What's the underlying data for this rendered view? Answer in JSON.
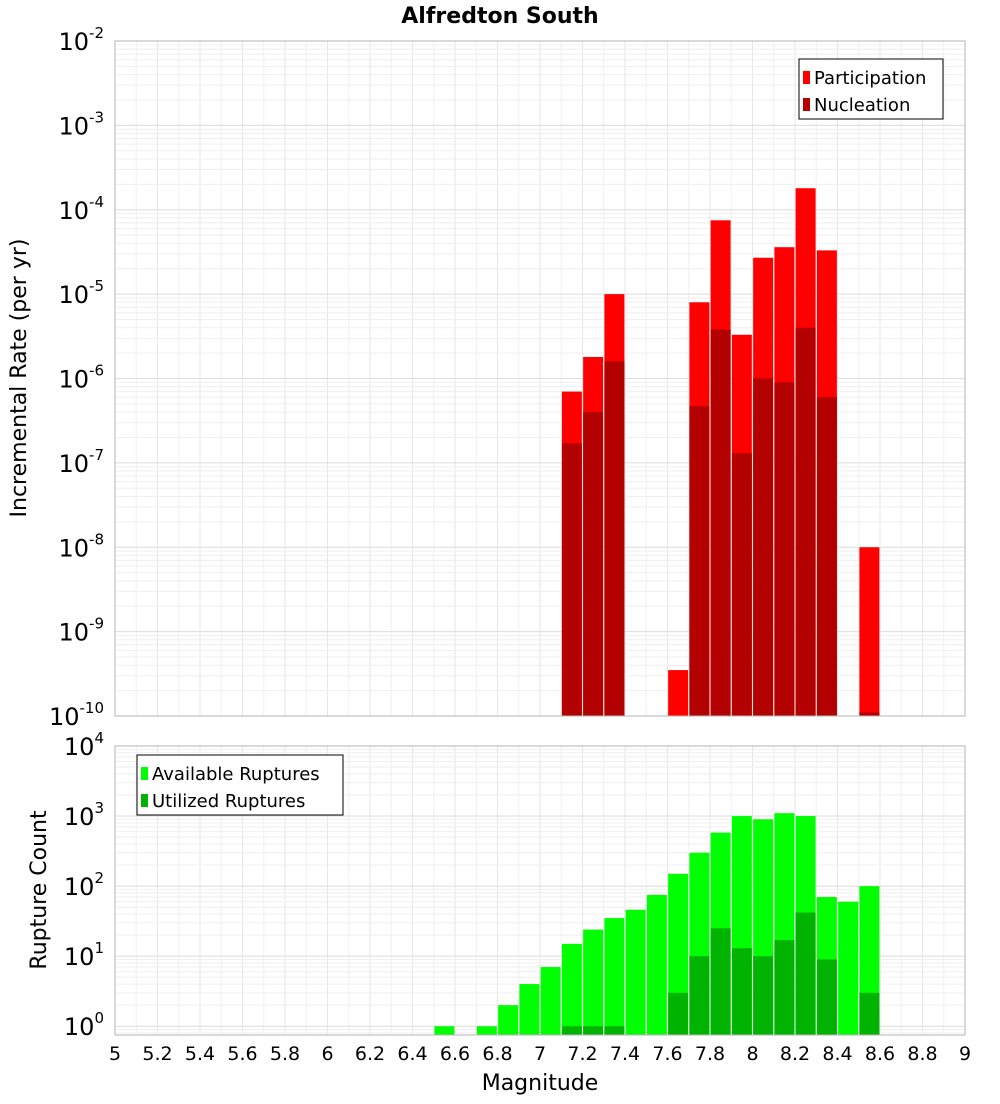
{
  "chart_data": [
    {
      "id": "rates",
      "type": "bar",
      "title": "Alfredton South",
      "xlabel": "Magnitude",
      "ylabel": "Incremental Rate (per yr)",
      "yscale": "log",
      "ylim": [
        1e-10,
        0.01
      ],
      "xlim": [
        5,
        9
      ],
      "y_tick_labels": [
        {
          "base": "10",
          "exp": "-10"
        },
        {
          "base": "10",
          "exp": "-9"
        },
        {
          "base": "10",
          "exp": "-8"
        },
        {
          "base": "10",
          "exp": "-7"
        },
        {
          "base": "10",
          "exp": "-6"
        },
        {
          "base": "10",
          "exp": "-5"
        },
        {
          "base": "10",
          "exp": "-4"
        },
        {
          "base": "10",
          "exp": "-3"
        },
        {
          "base": "10",
          "exp": "-2"
        }
      ],
      "legend_position": "top-right",
      "series": [
        {
          "name": "Participation",
          "color": "#ff0000",
          "points": [
            [
              7.15,
              7e-07
            ],
            [
              7.25,
              1.8e-06
            ],
            [
              7.35,
              1e-05
            ],
            [
              7.65,
              3.5e-10
            ],
            [
              7.75,
              8e-06
            ],
            [
              7.85,
              7.5e-05
            ],
            [
              7.95,
              3.3e-06
            ],
            [
              8.05,
              2.7e-05
            ],
            [
              8.15,
              3.6e-05
            ],
            [
              8.25,
              0.00018
            ],
            [
              8.35,
              3.3e-05
            ],
            [
              8.55,
              1e-08
            ]
          ]
        },
        {
          "name": "Nucleation",
          "color": "#b30000",
          "points": [
            [
              7.15,
              1.7e-07
            ],
            [
              7.25,
              4e-07
            ],
            [
              7.35,
              1.6e-06
            ],
            [
              7.75,
              4.7e-07
            ],
            [
              7.85,
              3.8e-06
            ],
            [
              7.95,
              1.3e-07
            ],
            [
              8.05,
              1e-06
            ],
            [
              8.15,
              9e-07
            ],
            [
              8.25,
              4e-06
            ],
            [
              8.35,
              6e-07
            ],
            [
              8.55,
              1.1e-10
            ]
          ]
        }
      ]
    },
    {
      "id": "counts",
      "type": "bar",
      "xlabel": "Magnitude",
      "ylabel": "Rupture Count",
      "yscale": "log",
      "ylim": [
        0.75,
        10000
      ],
      "xlim": [
        5,
        9
      ],
      "x_tick_labels": [
        "5",
        "5.2",
        "5.4",
        "5.6",
        "5.8",
        "6",
        "6.2",
        "6.4",
        "6.6",
        "6.8",
        "7",
        "7.2",
        "7.4",
        "7.6",
        "7.8",
        "8",
        "8.2",
        "8.4",
        "8.6",
        "8.8",
        "9"
      ],
      "y_tick_labels": [
        {
          "base": "10",
          "exp": "0"
        },
        {
          "base": "10",
          "exp": "1"
        },
        {
          "base": "10",
          "exp": "2"
        },
        {
          "base": "10",
          "exp": "3"
        },
        {
          "base": "10",
          "exp": "4"
        }
      ],
      "legend_position": "top-left",
      "series": [
        {
          "name": "Available Ruptures",
          "color": "#00ff00",
          "points": [
            [
              6.55,
              1
            ],
            [
              6.75,
              1
            ],
            [
              6.85,
              2
            ],
            [
              6.95,
              4
            ],
            [
              7.05,
              7
            ],
            [
              7.15,
              15
            ],
            [
              7.25,
              24
            ],
            [
              7.35,
              35
            ],
            [
              7.45,
              46
            ],
            [
              7.55,
              75
            ],
            [
              7.65,
              150
            ],
            [
              7.75,
              300
            ],
            [
              7.85,
              580
            ],
            [
              7.95,
              1000
            ],
            [
              8.05,
              900
            ],
            [
              8.15,
              1100
            ],
            [
              8.25,
              1000
            ],
            [
              8.35,
              70
            ],
            [
              8.45,
              60
            ],
            [
              8.55,
              100
            ]
          ]
        },
        {
          "name": "Utilized Ruptures",
          "color": "#00b300",
          "points": [
            [
              7.15,
              1
            ],
            [
              7.25,
              1
            ],
            [
              7.35,
              1
            ],
            [
              7.65,
              3
            ],
            [
              7.75,
              10
            ],
            [
              7.85,
              25
            ],
            [
              7.95,
              13
            ],
            [
              8.05,
              10
            ],
            [
              8.15,
              17
            ],
            [
              8.25,
              42
            ],
            [
              8.35,
              9
            ],
            [
              8.55,
              3
            ]
          ]
        }
      ]
    }
  ]
}
